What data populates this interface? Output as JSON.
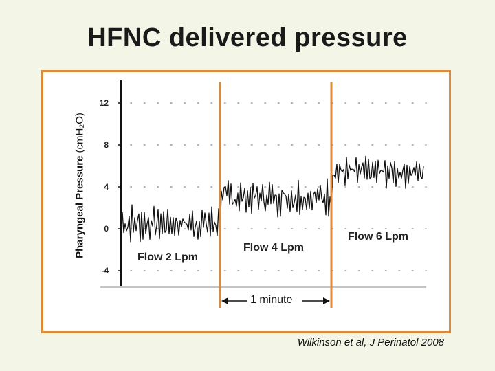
{
  "title": "HFNC delivered pressure",
  "citation": "Wilkinson et al, J Perinatol 2008",
  "colors": {
    "background": "#f3f5e6",
    "frame": "#d98a3a",
    "marker": "#d98a3a",
    "trace": "#111111"
  },
  "chart_data": {
    "type": "line",
    "ylabel": "Pharyngeal  Pressure (cmH₂O)",
    "ylabel_lead": "Pharyngeal  Pressure",
    "ylabel_unit": "(cmH₂O)",
    "yticks": [
      12,
      8,
      4,
      0,
      -4
    ],
    "ylim": [
      -5,
      14
    ],
    "grid": true,
    "segments": [
      {
        "name": "Flow 2 Lpm",
        "mean": -0.4,
        "min": -1.5,
        "max": 2.5
      },
      {
        "name": "Flow 4 Lpm",
        "mean": 3.0,
        "min": 1.0,
        "max": 5.0
      },
      {
        "name": "Flow 6 Lpm",
        "mean": 5.5,
        "min": 3.8,
        "max": 7.0
      }
    ],
    "annotation": "1 minute"
  }
}
